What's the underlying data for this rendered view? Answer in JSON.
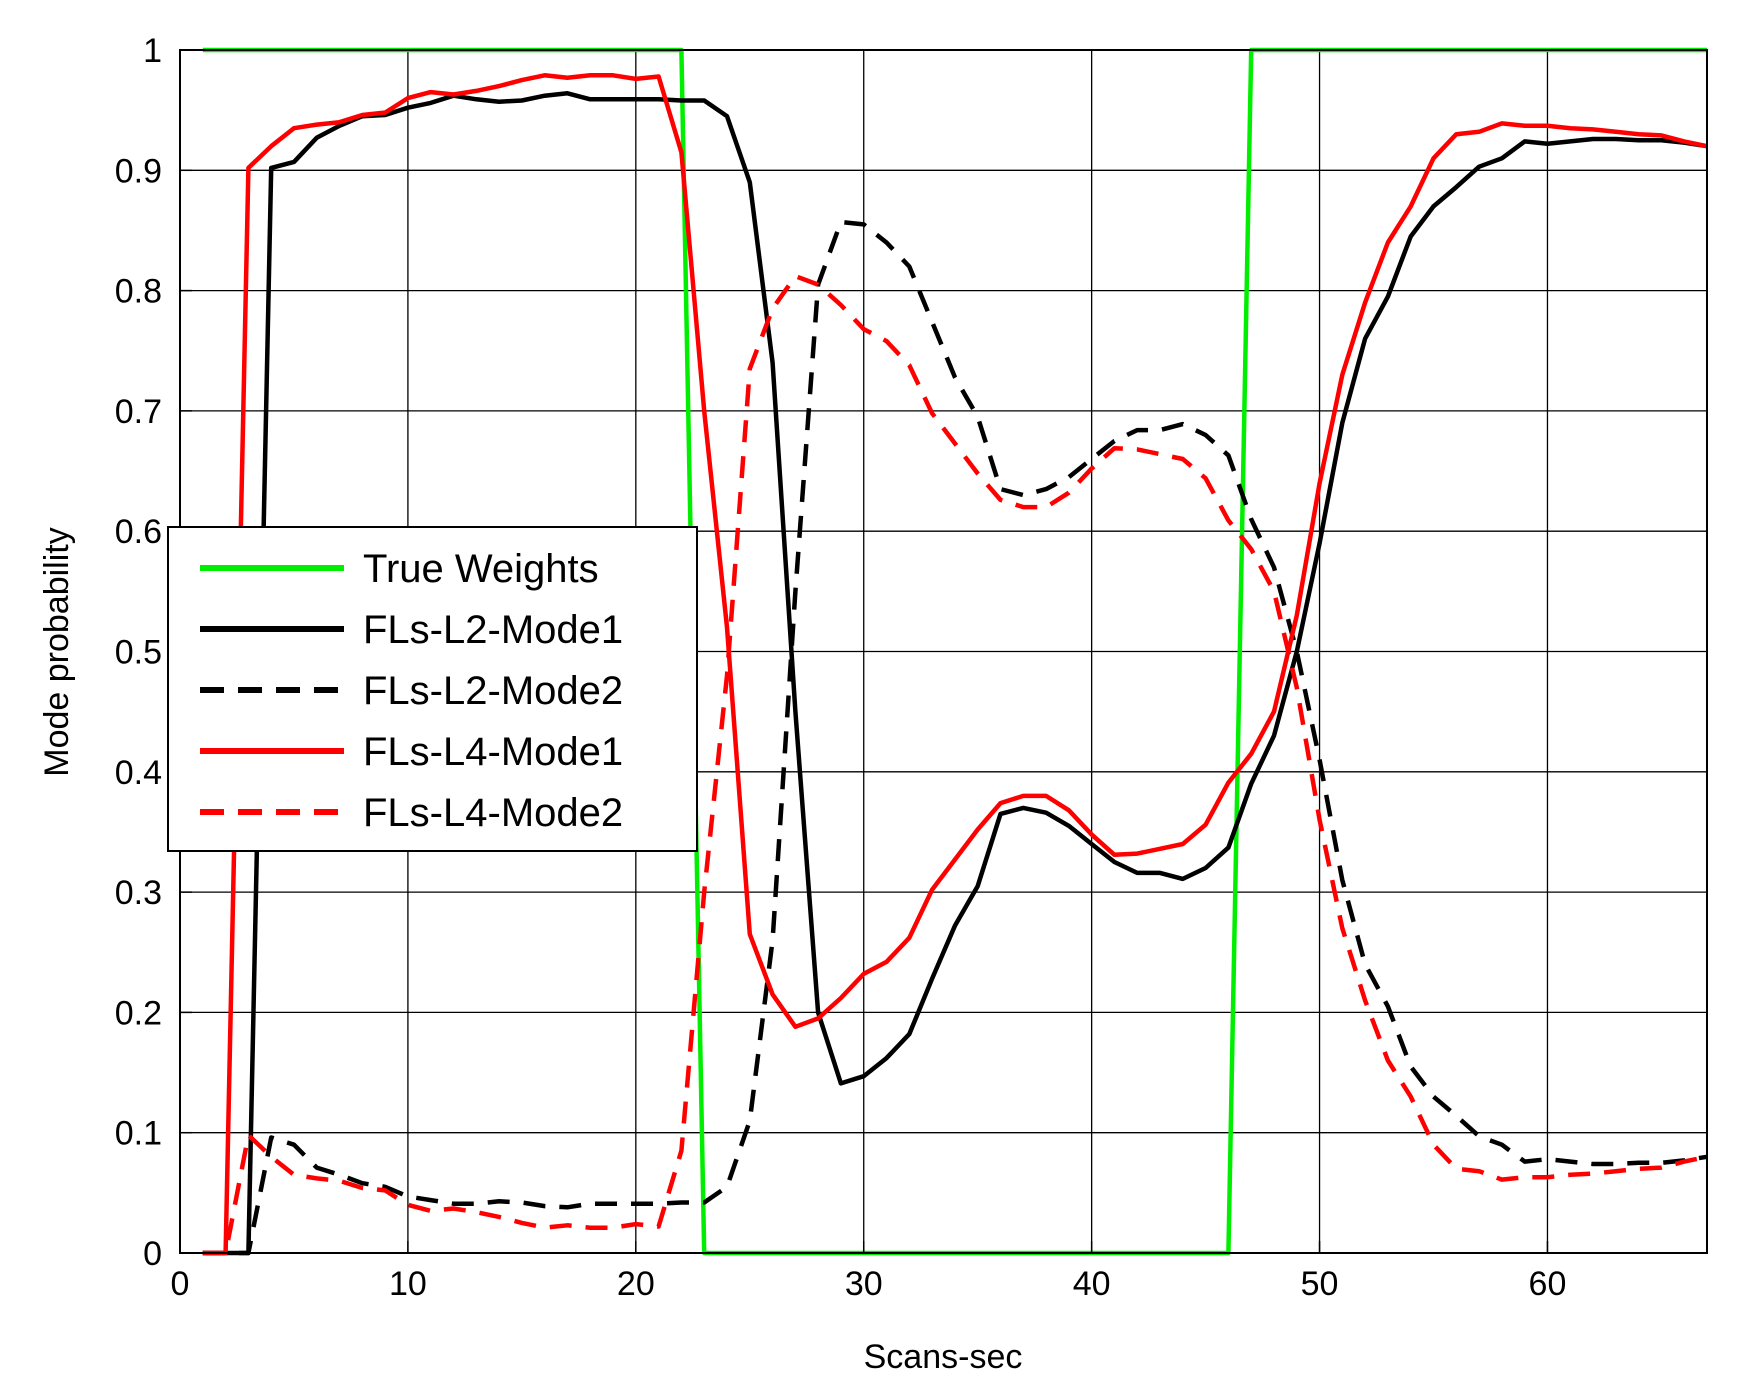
{
  "chart_data": {
    "type": "line",
    "title": "",
    "xlabel": "Scans-sec",
    "ylabel": "Mode probability",
    "xlim": [
      0,
      67
    ],
    "ylim": [
      0,
      1
    ],
    "xticks": [
      0,
      10,
      20,
      30,
      40,
      50,
      60
    ],
    "xtick_labels": [
      "0",
      "10",
      "20",
      "30",
      "40",
      "50",
      "60"
    ],
    "yticks": [
      0,
      0.1,
      0.2,
      0.3,
      0.4,
      0.5,
      0.6,
      0.7,
      0.8,
      0.9,
      1
    ],
    "ytick_labels": [
      "0",
      "0.1",
      "0.2",
      "0.3",
      "0.4",
      "0.5",
      "0.6",
      "0.7",
      "0.8",
      "0.9",
      "1"
    ],
    "grid": true,
    "legend_position": "center-left",
    "series": [
      {
        "name": "True Weights",
        "color": "#00ee00",
        "dash": "solid",
        "x": [
          1,
          22,
          23,
          46,
          47,
          67
        ],
        "y": [
          1,
          1,
          0,
          0,
          1,
          1
        ]
      },
      {
        "name": "FLs-L2-Mode1",
        "color": "#000000",
        "dash": "solid",
        "x": [
          1,
          2,
          3,
          4,
          5,
          6,
          7,
          8,
          9,
          10,
          11,
          12,
          13,
          14,
          15,
          16,
          17,
          18,
          19,
          20,
          21,
          22,
          23,
          24,
          25,
          26,
          27,
          28,
          29,
          30,
          31,
          32,
          33,
          34,
          35,
          36,
          37,
          38,
          39,
          40,
          41,
          42,
          43,
          44,
          45,
          46,
          47,
          48,
          49,
          50,
          51,
          52,
          53,
          54,
          55,
          56,
          57,
          58,
          59,
          60,
          61,
          62,
          63,
          64,
          65,
          66,
          67
        ],
        "y": [
          0,
          0,
          0,
          0.902,
          0.907,
          0.927,
          0.937,
          0.945,
          0.946,
          0.952,
          0.956,
          0.962,
          0.959,
          0.957,
          0.958,
          0.962,
          0.964,
          0.959,
          0.959,
          0.959,
          0.959,
          0.958,
          0.958,
          0.945,
          0.89,
          0.74,
          0.45,
          0.2,
          0.141,
          0.147,
          0.162,
          0.182,
          0.228,
          0.272,
          0.305,
          0.365,
          0.37,
          0.366,
          0.355,
          0.34,
          0.325,
          0.316,
          0.316,
          0.311,
          0.32,
          0.337,
          0.39,
          0.43,
          0.5,
          0.59,
          0.69,
          0.76,
          0.795,
          0.845,
          0.87,
          0.886,
          0.903,
          0.91,
          0.924,
          0.922,
          0.924,
          0.926,
          0.926,
          0.925,
          0.925,
          0.923,
          0.92
        ]
      },
      {
        "name": "FLs-L2-Mode2",
        "color": "#000000",
        "dash": "dashed",
        "x": [
          1,
          2,
          3,
          4,
          5,
          6,
          7,
          8,
          9,
          10,
          11,
          12,
          13,
          14,
          15,
          16,
          17,
          18,
          19,
          20,
          21,
          22,
          23,
          24,
          25,
          26,
          27,
          28,
          29,
          30,
          31,
          32,
          33,
          34,
          35,
          36,
          37,
          38,
          39,
          40,
          41,
          42,
          43,
          44,
          45,
          46,
          47,
          48,
          49,
          50,
          51,
          52,
          53,
          54,
          55,
          56,
          57,
          58,
          59,
          60,
          61,
          62,
          63,
          64,
          65,
          66,
          67
        ],
        "y": [
          0,
          0,
          0,
          0.096,
          0.09,
          0.071,
          0.065,
          0.058,
          0.055,
          0.047,
          0.044,
          0.041,
          0.041,
          0.043,
          0.042,
          0.039,
          0.038,
          0.041,
          0.041,
          0.041,
          0.041,
          0.042,
          0.042,
          0.055,
          0.11,
          0.26,
          0.55,
          0.805,
          0.857,
          0.855,
          0.84,
          0.82,
          0.774,
          0.728,
          0.695,
          0.635,
          0.63,
          0.635,
          0.645,
          0.66,
          0.675,
          0.684,
          0.684,
          0.689,
          0.68,
          0.663,
          0.61,
          0.57,
          0.5,
          0.41,
          0.31,
          0.24,
          0.205,
          0.155,
          0.13,
          0.114,
          0.097,
          0.09,
          0.076,
          0.078,
          0.076,
          0.074,
          0.074,
          0.075,
          0.075,
          0.077,
          0.08
        ]
      },
      {
        "name": "FLs-L4-Mode1",
        "color": "#ff0000",
        "dash": "solid",
        "x": [
          1,
          2,
          3,
          4,
          5,
          6,
          7,
          8,
          9,
          10,
          11,
          12,
          13,
          14,
          15,
          16,
          17,
          18,
          19,
          20,
          21,
          22,
          23,
          24,
          25,
          26,
          27,
          28,
          29,
          30,
          31,
          32,
          33,
          34,
          35,
          36,
          37,
          38,
          39,
          40,
          41,
          42,
          43,
          44,
          45,
          46,
          47,
          48,
          49,
          50,
          51,
          52,
          53,
          54,
          55,
          56,
          57,
          58,
          59,
          60,
          61,
          62,
          63,
          64,
          65,
          66,
          67
        ],
        "y": [
          0,
          0,
          0.902,
          0.92,
          0.935,
          0.938,
          0.94,
          0.946,
          0.948,
          0.96,
          0.965,
          0.963,
          0.966,
          0.97,
          0.975,
          0.979,
          0.977,
          0.979,
          0.979,
          0.976,
          0.978,
          0.915,
          0.7,
          0.52,
          0.265,
          0.215,
          0.188,
          0.195,
          0.212,
          0.232,
          0.242,
          0.262,
          0.302,
          0.327,
          0.352,
          0.374,
          0.38,
          0.38,
          0.368,
          0.348,
          0.331,
          0.332,
          0.336,
          0.34,
          0.356,
          0.391,
          0.415,
          0.45,
          0.53,
          0.64,
          0.73,
          0.79,
          0.84,
          0.87,
          0.91,
          0.93,
          0.932,
          0.939,
          0.937,
          0.937,
          0.935,
          0.934,
          0.932,
          0.93,
          0.929,
          0.924,
          0.92
        ]
      },
      {
        "name": "FLs-L4-Mode2",
        "color": "#ff0000",
        "dash": "dashed",
        "x": [
          1,
          2,
          3,
          4,
          5,
          6,
          7,
          8,
          9,
          10,
          11,
          12,
          13,
          14,
          15,
          16,
          17,
          18,
          19,
          20,
          21,
          22,
          23,
          24,
          25,
          26,
          27,
          28,
          29,
          30,
          31,
          32,
          33,
          34,
          35,
          36,
          37,
          38,
          39,
          40,
          41,
          42,
          43,
          44,
          45,
          46,
          47,
          48,
          49,
          50,
          51,
          52,
          53,
          54,
          55,
          56,
          57,
          58,
          59,
          60,
          61,
          62,
          63,
          64,
          65,
          66,
          67
        ],
        "y": [
          0,
          0,
          0.098,
          0.08,
          0.065,
          0.062,
          0.06,
          0.054,
          0.052,
          0.04,
          0.035,
          0.037,
          0.034,
          0.03,
          0.025,
          0.021,
          0.023,
          0.021,
          0.021,
          0.024,
          0.022,
          0.085,
          0.3,
          0.48,
          0.735,
          0.785,
          0.812,
          0.805,
          0.788,
          0.768,
          0.758,
          0.738,
          0.698,
          0.673,
          0.648,
          0.626,
          0.62,
          0.62,
          0.632,
          0.652,
          0.669,
          0.668,
          0.664,
          0.66,
          0.644,
          0.609,
          0.585,
          0.55,
          0.47,
          0.36,
          0.27,
          0.21,
          0.16,
          0.13,
          0.09,
          0.07,
          0.068,
          0.061,
          0.063,
          0.063,
          0.065,
          0.066,
          0.068,
          0.07,
          0.071,
          0.076,
          0.08
        ]
      }
    ]
  }
}
